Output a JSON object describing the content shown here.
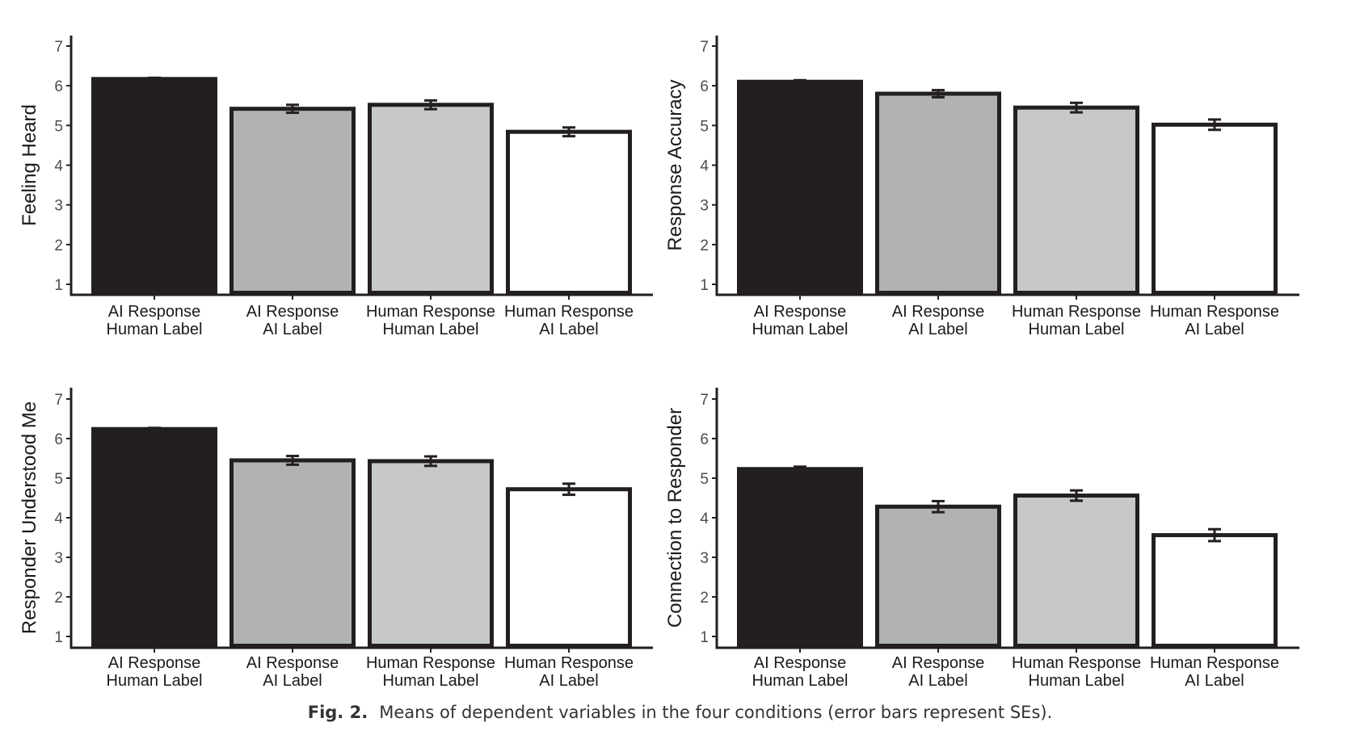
{
  "caption": {
    "label": "Fig. 2.",
    "text": "Means of dependent variables in the four conditions (error bars represent SEs)."
  },
  "colors": {
    "ai_response_human_label": "#231f20",
    "ai_response_ai_label": "#b1b2b4",
    "human_response_human_label": "#c7c8ca",
    "human_response_ai_label": "#ffffff",
    "outline": "#231f20"
  },
  "chart_data": [
    {
      "type": "bar",
      "ylabel": "Feeling Heard",
      "ylim": [
        1,
        7
      ],
      "yticks": [
        1,
        2,
        3,
        4,
        5,
        6,
        7
      ],
      "categories": [
        [
          "AI Response",
          "Human Label"
        ],
        [
          "AI Response",
          "AI Label"
        ],
        [
          "Human Response",
          "Human Label"
        ],
        [
          "Human Response",
          "AI Label"
        ]
      ],
      "values": [
        6.17,
        5.42,
        5.52,
        4.84
      ],
      "se": [
        0.03,
        0.1,
        0.11,
        0.11
      ]
    },
    {
      "type": "bar",
      "ylabel": "Response Accuracy",
      "ylim": [
        1,
        7
      ],
      "yticks": [
        1,
        2,
        3,
        4,
        5,
        6,
        7
      ],
      "categories": [
        [
          "AI Response",
          "Human Label"
        ],
        [
          "AI Response",
          "AI Label"
        ],
        [
          "Human Response",
          "Human Label"
        ],
        [
          "Human Response",
          "AI Label"
        ]
      ],
      "values": [
        6.1,
        5.8,
        5.45,
        5.02
      ],
      "se": [
        0.04,
        0.09,
        0.12,
        0.13
      ]
    },
    {
      "type": "bar",
      "ylabel": "Responder Understood Me",
      "ylim": [
        1,
        7
      ],
      "yticks": [
        1,
        2,
        3,
        4,
        5,
        6,
        7
      ],
      "categories": [
        [
          "AI Response",
          "Human Label"
        ],
        [
          "AI Response",
          "AI Label"
        ],
        [
          "Human Response",
          "Human Label"
        ],
        [
          "Human Response",
          "AI Label"
        ]
      ],
      "values": [
        6.24,
        5.45,
        5.43,
        4.72
      ],
      "se": [
        0.03,
        0.11,
        0.12,
        0.14
      ]
    },
    {
      "type": "bar",
      "ylabel": "Connection to Responder",
      "ylim": [
        1,
        7
      ],
      "yticks": [
        1,
        2,
        3,
        4,
        5,
        6,
        7
      ],
      "categories": [
        [
          "AI Response",
          "Human Label"
        ],
        [
          "AI Response",
          "AI Label"
        ],
        [
          "Human Response",
          "Human Label"
        ],
        [
          "Human Response",
          "AI Label"
        ]
      ],
      "values": [
        5.23,
        4.28,
        4.56,
        3.56
      ],
      "se": [
        0.06,
        0.14,
        0.13,
        0.15
      ]
    }
  ]
}
